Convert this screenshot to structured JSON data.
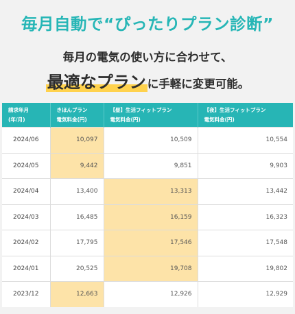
{
  "headline": "毎月自動で“ぴったりプラン診断”",
  "subtitle_line1": "毎月の電気の使い方に合わせて、",
  "subtitle_highlight": "最適なプラン",
  "subtitle_rest": "に手軽に変更可能。",
  "colors": {
    "accent": "#27b5b5",
    "highlight_cell": "#fde3a8",
    "underline": "#ffd24d"
  },
  "table": {
    "headers": [
      [
        "請求年月",
        "(年/月)"
      ],
      [
        "きほんプラン",
        "電気料金(円)"
      ],
      [
        "【昼】生活フィットプラン",
        "電気料金(円)"
      ],
      [
        "【夜】生活フィットプラン",
        "電気料金(円)"
      ]
    ],
    "rows": [
      {
        "month": "2024/06",
        "values": [
          "10,097",
          "10,509",
          "10,554"
        ],
        "best": 0
      },
      {
        "month": "2024/05",
        "values": [
          "9,442",
          "9,851",
          "9,903"
        ],
        "best": 0
      },
      {
        "month": "2024/04",
        "values": [
          "13,400",
          "13,313",
          "13,442"
        ],
        "best": 1
      },
      {
        "month": "2024/03",
        "values": [
          "16,485",
          "16,159",
          "16,323"
        ],
        "best": 1
      },
      {
        "month": "2024/02",
        "values": [
          "17,795",
          "17,546",
          "17,548"
        ],
        "best": 1
      },
      {
        "month": "2024/01",
        "values": [
          "20,525",
          "19,708",
          "19,802"
        ],
        "best": 1
      },
      {
        "month": "2023/12",
        "values": [
          "12,663",
          "12,926",
          "12,929"
        ],
        "best": 0
      }
    ]
  }
}
